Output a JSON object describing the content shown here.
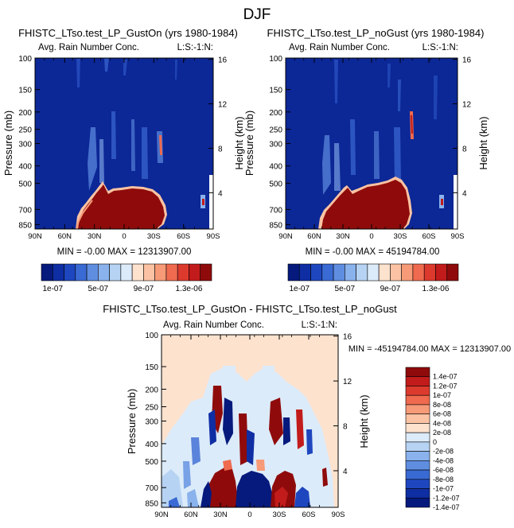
{
  "figure": {
    "title": "DJF"
  },
  "colors": {
    "pos_ramp": [
      "#fde2ce",
      "#fbc3a3",
      "#f79a77",
      "#ef6a4e",
      "#dd3a2e",
      "#c21b1b",
      "#8f0b0b"
    ],
    "neg_ramp": [
      "#dcebfa",
      "#b7d3f3",
      "#8ab2ec",
      "#5f8ee1",
      "#3a6ad3",
      "#1e47bf",
      "#0f2ea3",
      "#061a7d"
    ],
    "background_blue": "#0c2796",
    "rain_red": "#8f0b0b",
    "diff_background": "#fde2ce",
    "diff_pale_blue": "#dcebfa"
  },
  "panels": [
    {
      "title": "FHISTC_LTso.test_LP_GustOn (yrs 1980-1984)",
      "left_label": "Avg. Rain Number Conc.",
      "right_label": "L:S:-1:N:",
      "stats": "MIN =  -0.00  MAX = 12313907.00",
      "ylabel": "Pressure (mb)",
      "y2label": "Height (km)"
    },
    {
      "title": "FHISTC_LTso.test_LP_noGust (yrs 1980-1984)",
      "left_label": "Avg. Rain Number Conc.",
      "right_label": "L:S:-1:N:",
      "stats": "MIN =  -0.00  MAX = 45194784.00",
      "ylabel": "Pressure (mb)",
      "y2label": "Height (km)"
    },
    {
      "title": "FHISTC_LTso.test_LP_GustOn - FHISTC_LTso.test_LP_noGust",
      "left_label": "Avg. Rain Number Conc.",
      "right_label": "L:S:-1:N:",
      "stats": "MIN = -45194784.00  MAX = 12313907.00",
      "ylabel": "Pressure (mb)",
      "y2label": "Height (km)"
    }
  ],
  "chart_data": [
    {
      "type": "heatmap",
      "title": "FHISTC_LTso.test_LP_GustOn (yrs 1980-1984)",
      "variable": "Avg. Rain Number Conc.",
      "x_ticks": [
        "90N",
        "60N",
        "30N",
        "0",
        "30S",
        "60S",
        "90S"
      ],
      "x_range": [
        90,
        -90
      ],
      "y_ticks": [
        "100",
        "150",
        "200",
        "250",
        "300",
        "400",
        "500",
        "700",
        "850"
      ],
      "y_tick_values": [
        100,
        150,
        200,
        250,
        300,
        400,
        500,
        700,
        850
      ],
      "y_range": [
        100,
        900
      ],
      "y2_ticks": [
        "16",
        "12",
        "8",
        "4"
      ],
      "y2_tick_values": [
        16,
        12,
        8,
        4
      ],
      "min": -0.0,
      "max": 12313907.0,
      "ylabel": "Pressure (mb)",
      "y2label": "Height (km)"
    },
    {
      "type": "heatmap",
      "title": "FHISTC_LTso.test_LP_noGust (yrs 1980-1984)",
      "variable": "Avg. Rain Number Conc.",
      "x_ticks": [
        "90N",
        "60N",
        "30N",
        "0",
        "30S",
        "60S",
        "90S"
      ],
      "x_range": [
        90,
        -90
      ],
      "y_ticks": [
        "100",
        "150",
        "200",
        "250",
        "300",
        "400",
        "500",
        "700",
        "850"
      ],
      "y_tick_values": [
        100,
        150,
        200,
        250,
        300,
        400,
        500,
        700,
        850
      ],
      "y_range": [
        100,
        900
      ],
      "y2_ticks": [
        "16",
        "12",
        "8",
        "4"
      ],
      "y2_tick_values": [
        16,
        12,
        8,
        4
      ],
      "min": -0.0,
      "max": 45194784.0,
      "ylabel": "Pressure (mb)",
      "y2label": "Height (km)"
    },
    {
      "type": "heatmap",
      "title": "FHISTC_LTso.test_LP_GustOn - FHISTC_LTso.test_LP_noGust",
      "variable": "Avg. Rain Number Conc.",
      "x_ticks": [
        "90N",
        "60N",
        "30N",
        "0",
        "30S",
        "60S",
        "90S"
      ],
      "x_range": [
        90,
        -90
      ],
      "y_ticks": [
        "100",
        "150",
        "200",
        "250",
        "300",
        "400",
        "500",
        "700",
        "850"
      ],
      "y_tick_values": [
        100,
        150,
        200,
        250,
        300,
        400,
        500,
        700,
        850
      ],
      "y_range": [
        100,
        900
      ],
      "y2_ticks": [
        "16",
        "12",
        "8",
        "4"
      ],
      "y2_tick_values": [
        16,
        12,
        8,
        4
      ],
      "min": -45194784.0,
      "max": 12313907.0,
      "ylabel": "Pressure (mb)",
      "y2label": "Height (km)"
    }
  ],
  "colorbars": {
    "top": {
      "labels": [
        "1e-07",
        "5e-07",
        "9e-07",
        "1.3e-06"
      ]
    },
    "diff": {
      "labels": [
        "1.4e-07",
        "1.2e-07",
        "1e-07",
        "8e-08",
        "6e-08",
        "4e-08",
        "2e-08",
        "0",
        "-2e-08",
        "-4e-08",
        "-6e-08",
        "-8e-08",
        "-1e-07",
        "-1.2e-07",
        "-1.4e-07"
      ]
    }
  }
}
